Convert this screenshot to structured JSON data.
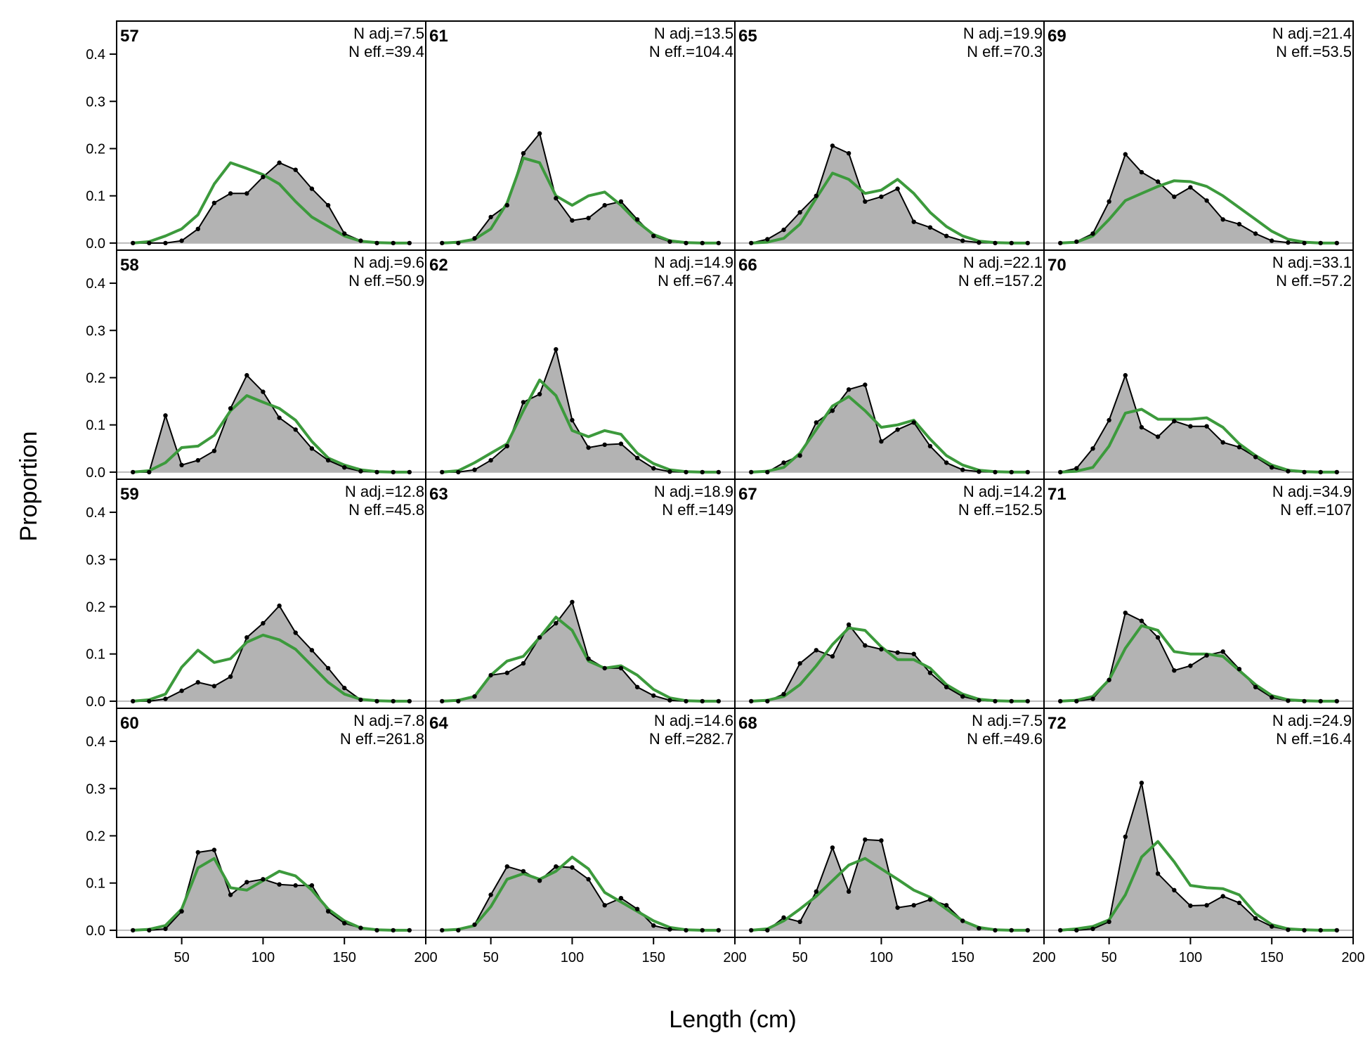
{
  "chart_data": {
    "type": "line",
    "xlabel": "Length (cm)",
    "ylabel": "Proportion",
    "xlim": [
      10,
      200
    ],
    "ylim": [
      -0.015,
      0.47
    ],
    "x_ticks": [
      50,
      100,
      150,
      200
    ],
    "y_ticks": [
      0.0,
      0.1,
      0.2,
      0.3,
      0.4
    ],
    "y_tick_labels": [
      "0.0",
      "0.1",
      "0.2",
      "0.3",
      "0.4"
    ],
    "layout": {
      "columns": 4,
      "rows": 4,
      "order": "column-major"
    },
    "x": [
      20,
      30,
      40,
      50,
      60,
      70,
      80,
      90,
      100,
      110,
      120,
      130,
      140,
      150,
      160,
      170,
      180,
      190
    ],
    "colors": {
      "observed_fill": "#b3b3b3",
      "observed_line": "#000000",
      "expected_line": "#3c9a3c",
      "zero_line": "#bbbbbb"
    },
    "panels": [
      {
        "label": "57",
        "n_adj": "N adj.=7.5",
        "n_eff": "N eff.=39.4",
        "observed": [
          0,
          0,
          0,
          0.005,
          0.03,
          0.085,
          0.105,
          0.105,
          0.14,
          0.17,
          0.155,
          0.115,
          0.08,
          0.02,
          0.005,
          0,
          0,
          0
        ],
        "expected": [
          0,
          0.003,
          0.015,
          0.03,
          0.06,
          0.125,
          0.17,
          0.158,
          0.145,
          0.125,
          0.088,
          0.055,
          0.035,
          0.015,
          0.004,
          0.001,
          0,
          0
        ]
      },
      {
        "label": "58",
        "n_adj": "N adj.=9.6",
        "n_eff": "N eff.=50.9",
        "observed": [
          0,
          0,
          0.12,
          0.015,
          0.025,
          0.045,
          0.135,
          0.205,
          0.17,
          0.115,
          0.09,
          0.05,
          0.025,
          0.01,
          0.002,
          0,
          0,
          0
        ],
        "expected": [
          0,
          0.003,
          0.02,
          0.052,
          0.055,
          0.078,
          0.13,
          0.162,
          0.148,
          0.135,
          0.11,
          0.065,
          0.03,
          0.015,
          0.005,
          0.001,
          0,
          0
        ]
      },
      {
        "label": "59",
        "n_adj": "N adj.=12.8",
        "n_eff": "N eff.=45.8",
        "observed": [
          0,
          0,
          0.005,
          0.022,
          0.04,
          0.032,
          0.052,
          0.135,
          0.165,
          0.202,
          0.145,
          0.108,
          0.07,
          0.028,
          0.003,
          0,
          0,
          0
        ],
        "expected": [
          0,
          0.003,
          0.015,
          0.072,
          0.108,
          0.082,
          0.09,
          0.125,
          0.14,
          0.13,
          0.11,
          0.075,
          0.04,
          0.015,
          0.004,
          0.001,
          0,
          0
        ]
      },
      {
        "label": "60",
        "n_adj": "N adj.=7.8",
        "n_eff": "N eff.=261.8",
        "observed": [
          0,
          0,
          0.003,
          0.04,
          0.165,
          0.17,
          0.075,
          0.102,
          0.108,
          0.097,
          0.095,
          0.095,
          0.04,
          0.015,
          0.005,
          0,
          0,
          0
        ],
        "expected": [
          0,
          0.002,
          0.01,
          0.045,
          0.132,
          0.152,
          0.09,
          0.085,
          0.105,
          0.125,
          0.115,
          0.085,
          0.045,
          0.02,
          0.005,
          0.001,
          0,
          0
        ]
      },
      {
        "label": "61",
        "n_adj": "N adj.=13.5",
        "n_eff": "N eff.=104.4",
        "observed": [
          0,
          0,
          0.01,
          0.055,
          0.08,
          0.19,
          0.232,
          0.095,
          0.048,
          0.053,
          0.08,
          0.088,
          0.05,
          0.015,
          0.003,
          0,
          0,
          0
        ],
        "expected": [
          0,
          0.002,
          0.008,
          0.03,
          0.085,
          0.18,
          0.17,
          0.1,
          0.08,
          0.1,
          0.108,
          0.08,
          0.045,
          0.018,
          0.005,
          0.001,
          0,
          0
        ]
      },
      {
        "label": "62",
        "n_adj": "N adj.=14.9",
        "n_eff": "N eff.=67.4",
        "observed": [
          0,
          0,
          0.005,
          0.025,
          0.055,
          0.148,
          0.165,
          0.26,
          0.11,
          0.052,
          0.058,
          0.06,
          0.03,
          0.008,
          0.001,
          0,
          0,
          0
        ],
        "expected": [
          0,
          0.003,
          0.02,
          0.04,
          0.06,
          0.13,
          0.195,
          0.162,
          0.088,
          0.075,
          0.088,
          0.08,
          0.04,
          0.018,
          0.005,
          0.001,
          0,
          0
        ]
      },
      {
        "label": "63",
        "n_adj": "N adj.=18.9",
        "n_eff": "N eff.=149",
        "observed": [
          0,
          0,
          0.01,
          0.055,
          0.06,
          0.08,
          0.135,
          0.165,
          0.21,
          0.09,
          0.07,
          0.07,
          0.03,
          0.012,
          0.002,
          0,
          0,
          0
        ],
        "expected": [
          0,
          0.002,
          0.01,
          0.055,
          0.085,
          0.095,
          0.135,
          0.178,
          0.15,
          0.085,
          0.07,
          0.075,
          0.055,
          0.025,
          0.007,
          0.001,
          0,
          0
        ]
      },
      {
        "label": "64",
        "n_adj": "N adj.=14.6",
        "n_eff": "N eff.=282.7",
        "observed": [
          0,
          0,
          0.012,
          0.075,
          0.135,
          0.125,
          0.105,
          0.135,
          0.133,
          0.108,
          0.053,
          0.068,
          0.045,
          0.01,
          0.002,
          0,
          0,
          0
        ],
        "expected": [
          0,
          0.002,
          0.01,
          0.05,
          0.108,
          0.12,
          0.108,
          0.125,
          0.155,
          0.13,
          0.08,
          0.06,
          0.04,
          0.02,
          0.006,
          0.001,
          0,
          0
        ]
      },
      {
        "label": "65",
        "n_adj": "N adj.=19.9",
        "n_eff": "N eff.=70.3",
        "observed": [
          0,
          0.008,
          0.028,
          0.065,
          0.1,
          0.206,
          0.19,
          0.088,
          0.098,
          0.115,
          0.045,
          0.033,
          0.015,
          0.005,
          0.001,
          0,
          0,
          0
        ],
        "expected": [
          0,
          0.002,
          0.01,
          0.04,
          0.095,
          0.148,
          0.135,
          0.105,
          0.112,
          0.135,
          0.105,
          0.065,
          0.035,
          0.015,
          0.004,
          0.001,
          0,
          0
        ]
      },
      {
        "label": "66",
        "n_adj": "N adj.=22.1",
        "n_eff": "N eff.=157.2",
        "observed": [
          0,
          0,
          0.02,
          0.035,
          0.105,
          0.13,
          0.175,
          0.185,
          0.065,
          0.09,
          0.105,
          0.055,
          0.02,
          0.005,
          0.001,
          0,
          0,
          0
        ],
        "expected": [
          0,
          0.002,
          0.01,
          0.04,
          0.09,
          0.14,
          0.16,
          0.13,
          0.095,
          0.1,
          0.11,
          0.07,
          0.035,
          0.015,
          0.004,
          0.001,
          0,
          0
        ]
      },
      {
        "label": "67",
        "n_adj": "N adj.=14.2",
        "n_eff": "N eff.=152.5",
        "observed": [
          0,
          0,
          0.015,
          0.08,
          0.108,
          0.095,
          0.162,
          0.118,
          0.11,
          0.103,
          0.1,
          0.06,
          0.03,
          0.01,
          0.002,
          0,
          0,
          0
        ],
        "expected": [
          0,
          0.002,
          0.01,
          0.035,
          0.075,
          0.12,
          0.155,
          0.15,
          0.115,
          0.088,
          0.088,
          0.07,
          0.035,
          0.015,
          0.004,
          0.001,
          0,
          0
        ]
      },
      {
        "label": "68",
        "n_adj": "N adj.=7.5",
        "n_eff": "N eff.=49.6",
        "observed": [
          0,
          0,
          0.027,
          0.018,
          0.082,
          0.175,
          0.082,
          0.192,
          0.19,
          0.048,
          0.053,
          0.065,
          0.053,
          0.02,
          0.004,
          0,
          0,
          0
        ],
        "expected": [
          0,
          0.003,
          0.02,
          0.045,
          0.072,
          0.105,
          0.138,
          0.152,
          0.13,
          0.108,
          0.085,
          0.07,
          0.045,
          0.02,
          0.006,
          0.001,
          0,
          0
        ]
      },
      {
        "label": "69",
        "n_adj": "N adj.=21.4",
        "n_eff": "N eff.=53.5",
        "observed": [
          0,
          0.003,
          0.02,
          0.088,
          0.188,
          0.15,
          0.13,
          0.098,
          0.118,
          0.09,
          0.05,
          0.04,
          0.02,
          0.005,
          0.001,
          0,
          0,
          0
        ],
        "expected": [
          0,
          0.002,
          0.015,
          0.05,
          0.09,
          0.105,
          0.12,
          0.132,
          0.13,
          0.12,
          0.1,
          0.075,
          0.05,
          0.025,
          0.008,
          0.002,
          0,
          0
        ]
      },
      {
        "label": "70",
        "n_adj": "N adj.=33.1",
        "n_eff": "N eff.=57.2",
        "observed": [
          0,
          0.008,
          0.05,
          0.11,
          0.205,
          0.095,
          0.075,
          0.108,
          0.097,
          0.097,
          0.063,
          0.053,
          0.032,
          0.01,
          0.002,
          0,
          0,
          0
        ],
        "expected": [
          0,
          0.002,
          0.01,
          0.055,
          0.125,
          0.133,
          0.112,
          0.112,
          0.112,
          0.115,
          0.095,
          0.06,
          0.035,
          0.015,
          0.004,
          0.001,
          0,
          0
        ]
      },
      {
        "label": "71",
        "n_adj": "N adj.=34.9",
        "n_eff": "N eff.=107",
        "observed": [
          0,
          0,
          0.005,
          0.045,
          0.187,
          0.17,
          0.135,
          0.065,
          0.075,
          0.097,
          0.105,
          0.068,
          0.03,
          0.008,
          0.001,
          0,
          0,
          0
        ],
        "expected": [
          0,
          0.002,
          0.01,
          0.045,
          0.112,
          0.16,
          0.15,
          0.105,
          0.1,
          0.1,
          0.095,
          0.065,
          0.035,
          0.012,
          0.003,
          0.001,
          0,
          0
        ]
      },
      {
        "label": "72",
        "n_adj": "N adj.=24.9",
        "n_eff": "N eff.=16.4",
        "observed": [
          0,
          0,
          0.003,
          0.018,
          0.198,
          0.312,
          0.12,
          0.085,
          0.052,
          0.053,
          0.072,
          0.058,
          0.025,
          0.008,
          0.001,
          0,
          0,
          0
        ],
        "expected": [
          0,
          0.003,
          0.008,
          0.022,
          0.075,
          0.155,
          0.188,
          0.145,
          0.095,
          0.09,
          0.088,
          0.075,
          0.035,
          0.012,
          0.003,
          0.001,
          0,
          0
        ]
      }
    ]
  }
}
